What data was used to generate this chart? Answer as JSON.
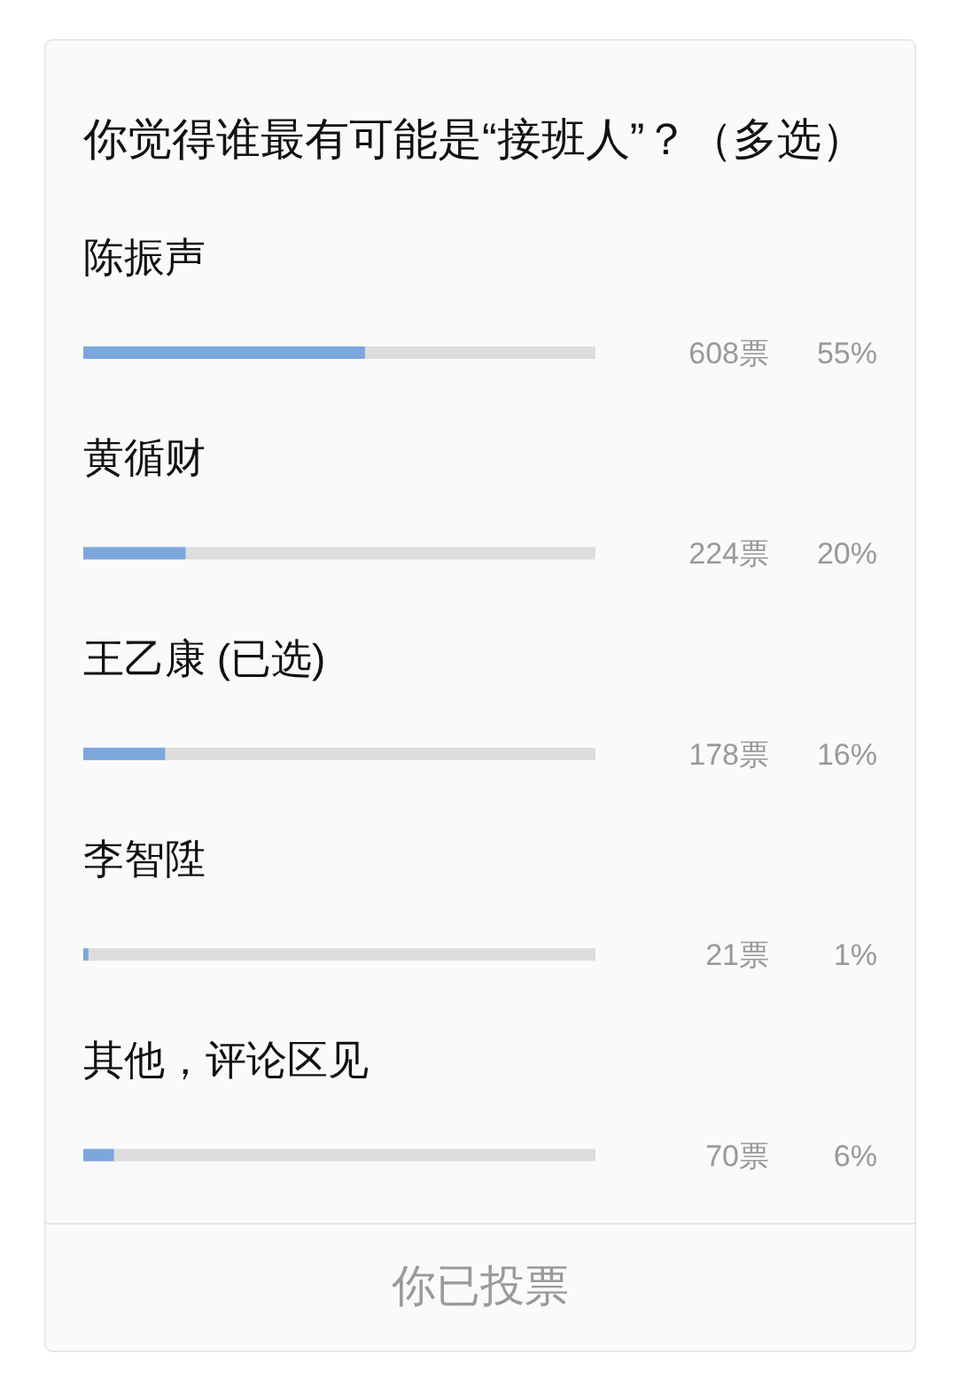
{
  "chart_data": {
    "type": "bar",
    "orientation": "horizontal",
    "title": "你觉得谁最有可能是“接班人”？（多选）",
    "categories": [
      "陈振声",
      "黄循财",
      "王乙康 (已选)",
      "李智陞",
      "其他，评论区见"
    ],
    "series": [
      {
        "color": "#7ba7dc",
        "values": [
          55,
          20,
          16,
          1,
          6
        ],
        "value_labels": [
          "55%",
          "20%",
          "16%",
          "1%",
          "6%"
        ]
      }
    ],
    "xlim": [
      0,
      100
    ],
    "tick_labels": "y",
    "annotations": [
      "608票",
      "224票",
      "178票",
      "21票",
      "70票",
      "你已投票"
    ]
  }
}
